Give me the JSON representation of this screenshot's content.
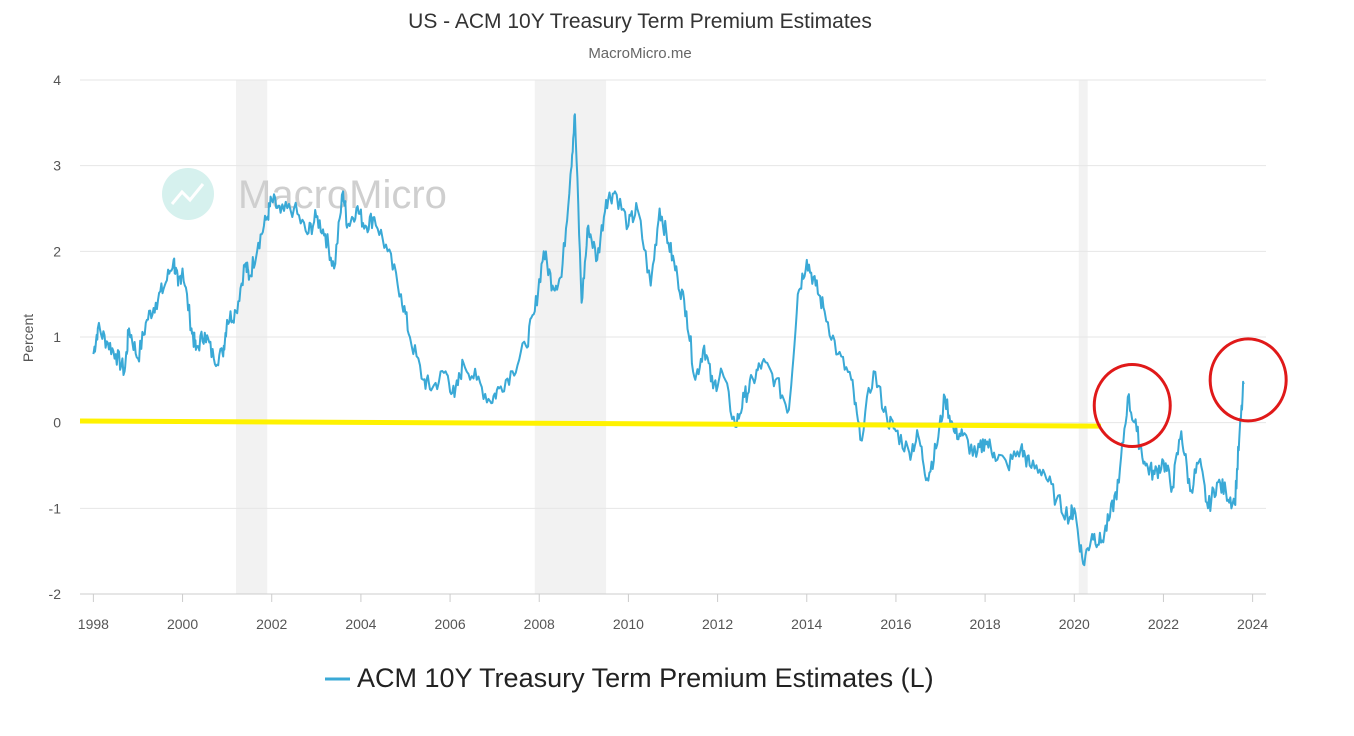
{
  "chart_data": {
    "type": "line",
    "title": "US - ACM 10Y Treasury Term Premium Estimates",
    "subtitle": "MacroMicro.me",
    "watermark": "MacroMicro",
    "xlabel": "",
    "ylabel": "Percent",
    "xlim": [
      1997.7,
      2024.3
    ],
    "ylim": [
      -2,
      4
    ],
    "x_ticks": [
      1998,
      2000,
      2002,
      2004,
      2006,
      2008,
      2010,
      2012,
      2014,
      2016,
      2018,
      2020,
      2022,
      2024
    ],
    "y_ticks": [
      -2,
      -1,
      0,
      1,
      2,
      3,
      4
    ],
    "grid": true,
    "legend_position": "bottom-center",
    "recession_bands": [
      [
        2001.2,
        2001.9
      ],
      [
        2007.9,
        2009.5
      ],
      [
        2020.1,
        2020.3
      ]
    ],
    "series": [
      {
        "name": "ACM 10Y Treasury Term Premium Estimates (L)",
        "color": "#3aa9d6",
        "x": [
          1998.0,
          1998.1,
          1998.3,
          1998.5,
          1998.7,
          1998.8,
          1999.0,
          1999.2,
          1999.4,
          1999.6,
          1999.8,
          1999.9,
          2000.0,
          2000.2,
          2000.3,
          2000.5,
          2000.7,
          2000.9,
          2001.0,
          2001.2,
          2001.4,
          2001.5,
          2001.7,
          2001.9,
          2002.0,
          2002.2,
          2002.5,
          2002.8,
          2003.0,
          2003.2,
          2003.4,
          2003.6,
          2003.7,
          2003.9,
          2004.1,
          2004.3,
          2004.6,
          2004.9,
          2005.1,
          2005.4,
          2005.6,
          2005.9,
          2006.1,
          2006.3,
          2006.6,
          2006.9,
          2007.1,
          2007.4,
          2007.7,
          2007.9,
          2008.1,
          2008.3,
          2008.5,
          2008.7,
          2008.8,
          2008.95,
          2009.1,
          2009.3,
          2009.5,
          2009.7,
          2010.0,
          2010.2,
          2010.5,
          2010.7,
          2010.9,
          2011.1,
          2011.3,
          2011.5,
          2011.7,
          2011.9,
          2012.1,
          2012.4,
          2012.6,
          2012.8,
          2013.0,
          2013.3,
          2013.6,
          2013.8,
          2014.0,
          2014.2,
          2014.4,
          2014.7,
          2015.0,
          2015.2,
          2015.5,
          2015.8,
          2016.0,
          2016.3,
          2016.5,
          2016.7,
          2016.9,
          2017.1,
          2017.3,
          2017.5,
          2017.8,
          2018.0,
          2018.2,
          2018.5,
          2018.8,
          2019.0,
          2019.3,
          2019.6,
          2019.9,
          2020.0,
          2020.2,
          2020.4,
          2020.6,
          2020.8,
          2021.0,
          2021.2,
          2021.4,
          2021.6,
          2021.8,
          2022.0,
          2022.2,
          2022.4,
          2022.6,
          2022.8,
          2023.0,
          2023.2,
          2023.4,
          2023.6,
          2023.7,
          2023.8
        ],
        "y": [
          0.8,
          1.1,
          0.95,
          0.8,
          0.6,
          1.1,
          0.75,
          1.2,
          1.4,
          1.6,
          1.9,
          1.6,
          1.8,
          1.1,
          0.85,
          1.05,
          0.75,
          0.8,
          1.2,
          1.3,
          1.85,
          1.7,
          2.1,
          2.4,
          2.6,
          2.45,
          2.5,
          2.2,
          2.4,
          2.2,
          1.8,
          2.7,
          2.3,
          2.5,
          2.3,
          2.4,
          2.0,
          1.5,
          1.0,
          0.5,
          0.4,
          0.6,
          0.3,
          0.7,
          0.5,
          0.25,
          0.4,
          0.6,
          0.9,
          1.3,
          2.0,
          1.6,
          1.7,
          2.9,
          3.6,
          1.4,
          2.3,
          1.9,
          2.6,
          2.7,
          2.3,
          2.5,
          1.6,
          2.5,
          2.1,
          1.7,
          1.3,
          0.5,
          0.9,
          0.4,
          0.6,
          -0.05,
          0.3,
          0.5,
          0.7,
          0.5,
          0.15,
          1.5,
          1.9,
          1.6,
          1.3,
          0.8,
          0.5,
          -0.2,
          0.6,
          0.05,
          -0.1,
          -0.35,
          -0.15,
          -0.65,
          -0.3,
          0.3,
          -0.1,
          -0.15,
          -0.4,
          -0.2,
          -0.35,
          -0.5,
          -0.3,
          -0.5,
          -0.55,
          -0.9,
          -1.1,
          -1.0,
          -1.65,
          -1.3,
          -1.4,
          -1.1,
          -0.7,
          0.3,
          -0.1,
          -0.5,
          -0.6,
          -0.45,
          -0.75,
          -0.1,
          -0.8,
          -0.45,
          -1.0,
          -0.7,
          -0.8,
          -0.95,
          -0.2,
          0.45
        ]
      }
    ],
    "annotations": {
      "yellow_line_color": "#fff200",
      "yellow_line_x": [
        1997.7,
        2020.6
      ],
      "yellow_line_y": [
        0.02,
        -0.04
      ],
      "circle_color": "#e01919",
      "circles": [
        {
          "cx": 2021.3,
          "cy": 0.2
        },
        {
          "cx": 2023.9,
          "cy": 0.5
        }
      ]
    }
  }
}
